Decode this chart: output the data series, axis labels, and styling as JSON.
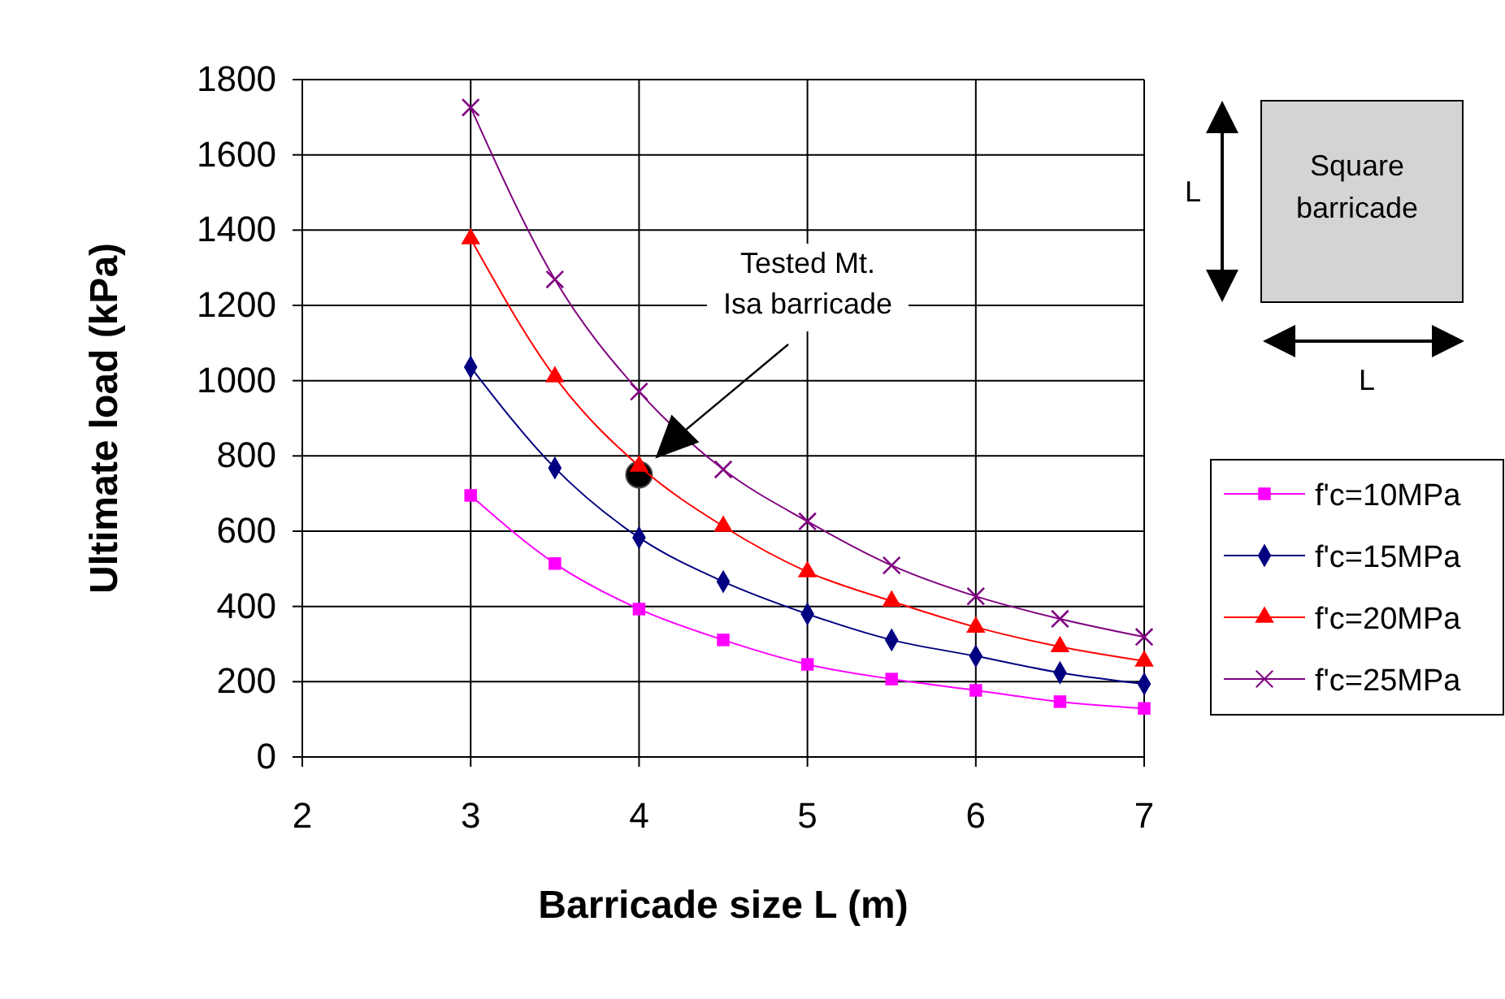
{
  "chart_data": {
    "type": "line",
    "xlabel": "Barricade size L (m)",
    "ylabel": "Ultimate load (kPa)",
    "x": [
      3,
      3.5,
      4,
      4.5,
      5,
      5.5,
      6,
      6.5,
      7
    ],
    "series": [
      {
        "name": "f'c=10MPa",
        "color": "#ff00ff",
        "marker": "square",
        "values": [
          695,
          514,
          393,
          311,
          246,
          207,
          177,
          147,
          129
        ]
      },
      {
        "name": "f'c=15MPa",
        "color": "#000080",
        "marker": "diamond",
        "values": [
          1036,
          768,
          583,
          466,
          380,
          311,
          268,
          224,
          194
        ]
      },
      {
        "name": "f'c=20MPa",
        "color": "#ff0000",
        "marker": "triangle",
        "values": [
          1377,
          1010,
          773,
          613,
          492,
          414,
          345,
          293,
          255
        ]
      },
      {
        "name": "f'c=25MPa",
        "color": "#800080",
        "marker": "cross",
        "values": [
          1726,
          1269,
          971,
          764,
          626,
          509,
          427,
          367,
          319
        ]
      },
      {
        "type": "scatter",
        "color": "#000000",
        "marker": "circle",
        "x": [
          4
        ],
        "values": [
          750
        ]
      }
    ],
    "xlim": [
      2,
      7
    ],
    "xticks": [
      2,
      3,
      4,
      5,
      6,
      7
    ],
    "ylim": [
      0,
      1800
    ],
    "yticks": [
      0,
      200,
      400,
      600,
      800,
      1000,
      1200,
      1400,
      1600,
      1800
    ],
    "grid": true,
    "legend": "right",
    "line_style": "solid",
    "annotations": [
      "Tested Mt.\nIsa barricade",
      "Square barricade",
      "L",
      "L"
    ]
  }
}
